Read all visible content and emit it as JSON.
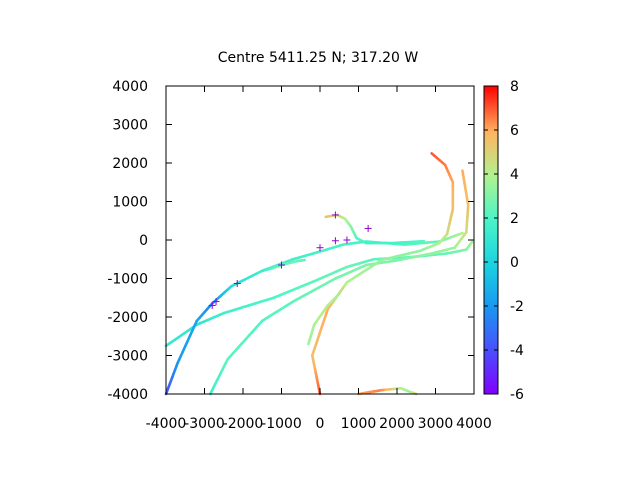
{
  "chart_data": {
    "type": "scatter",
    "title": "Centre 5411.25 N; 317.20  W",
    "xlabel": "",
    "ylabel": "",
    "xlim": [
      -4000,
      4000
    ],
    "ylim": [
      -4000,
      4000
    ],
    "xticks": [
      -4000,
      -3000,
      -2000,
      -1000,
      0,
      1000,
      2000,
      3000,
      4000
    ],
    "yticks": [
      -4000,
      -3000,
      -2000,
      -1000,
      0,
      1000,
      2000,
      3000,
      4000
    ],
    "colorbar": {
      "min": -6,
      "max": 8,
      "ticks": [
        -6,
        -4,
        -2,
        0,
        2,
        4,
        6,
        8
      ]
    },
    "grid": false,
    "legend": "none",
    "tracks": [
      {
        "points": [
          [
            -4000,
            -2750,
            1.2
          ],
          [
            -3200,
            -2200,
            1
          ],
          [
            -2500,
            -1900,
            1.5
          ],
          [
            -1200,
            -1500,
            2
          ],
          [
            -100,
            -1050,
            2.3
          ],
          [
            700,
            -700,
            2.5
          ],
          [
            1400,
            -500,
            2.3
          ],
          [
            2300,
            -450,
            2.3
          ],
          [
            3300,
            -350,
            2.5
          ],
          [
            3800,
            -250,
            3
          ],
          [
            3950,
            -50,
            3.8
          ]
        ]
      },
      {
        "points": [
          [
            -4000,
            -4000,
            -4
          ],
          [
            -3700,
            -3200,
            -2
          ],
          [
            -3200,
            -2100,
            -1.5
          ],
          [
            -2800,
            -1650,
            -2.5
          ],
          [
            -2300,
            -1200,
            0.5
          ],
          [
            -1500,
            -800,
            1.5
          ],
          [
            -700,
            -500,
            1.5
          ],
          [
            0,
            -300,
            1.8
          ],
          [
            600,
            -120,
            1.8
          ],
          [
            1200,
            -40,
            1.8
          ],
          [
            2200,
            -120,
            2
          ],
          [
            3100,
            -40,
            2.5
          ],
          [
            3700,
            180,
            4
          ]
        ]
      },
      {
        "points": [
          [
            -2850,
            -4000,
            1.5
          ],
          [
            -2400,
            -3100,
            2.3
          ],
          [
            -1500,
            -2100,
            2
          ],
          [
            -700,
            -1600,
            2.3
          ],
          [
            400,
            -1000,
            2.8
          ],
          [
            1200,
            -650,
            3
          ],
          [
            2000,
            -530,
            3
          ],
          [
            2900,
            -350,
            3.3
          ],
          [
            3500,
            -200,
            3.5
          ],
          [
            3800,
            200,
            4.5
          ],
          [
            3850,
            900,
            5.5
          ],
          [
            3700,
            1800,
            6
          ]
        ]
      },
      {
        "points": [
          [
            0,
            -4000,
            7
          ],
          [
            -200,
            -3000,
            5.5
          ],
          [
            200,
            -1800,
            6
          ],
          [
            700,
            -1100,
            4
          ],
          [
            1600,
            -520,
            3.3
          ],
          [
            2600,
            -280,
            3.3
          ],
          [
            3100,
            -80,
            3.8
          ],
          [
            3300,
            150,
            4.5
          ],
          [
            3450,
            800,
            5.5
          ],
          [
            3450,
            1500,
            6
          ],
          [
            3250,
            1950,
            6.5
          ],
          [
            2900,
            2250,
            7
          ]
        ]
      },
      {
        "points": [
          [
            -300,
            -2700,
            3.5
          ],
          [
            -150,
            -2200,
            3.8
          ],
          [
            200,
            -1700,
            4.2
          ],
          [
            500,
            -1400,
            3.5
          ]
        ]
      },
      {
        "points": [
          [
            150,
            600,
            5.5
          ],
          [
            450,
            650,
            5
          ],
          [
            650,
            550,
            4
          ],
          [
            800,
            350,
            3.2
          ],
          [
            950,
            50,
            2.2
          ],
          [
            1200,
            -80,
            1.8
          ],
          [
            1900,
            -80,
            1.7
          ],
          [
            2700,
            -30,
            2.2
          ]
        ]
      },
      {
        "points": [
          [
            -1500,
            -800,
            1.2
          ],
          [
            -1300,
            -750,
            2
          ],
          [
            -1000,
            -650,
            2.5
          ],
          [
            -600,
            -550,
            2.5
          ],
          [
            -400,
            -520,
            2.3
          ]
        ]
      },
      {
        "points": [
          [
            1000,
            -4000,
            6
          ],
          [
            1600,
            -3900,
            6.5
          ],
          [
            2100,
            -3850,
            4
          ],
          [
            2350,
            -3950,
            3.5
          ],
          [
            2500,
            -4000,
            5
          ]
        ]
      }
    ],
    "markers": [
      [
        -2800,
        -1700
      ],
      [
        -2700,
        -1600
      ],
      [
        -2150,
        -1130
      ],
      [
        -1000,
        -650
      ],
      [
        0,
        -200
      ],
      [
        400,
        -20
      ],
      [
        700,
        0
      ],
      [
        1250,
        300
      ],
      [
        400,
        650
      ]
    ]
  }
}
